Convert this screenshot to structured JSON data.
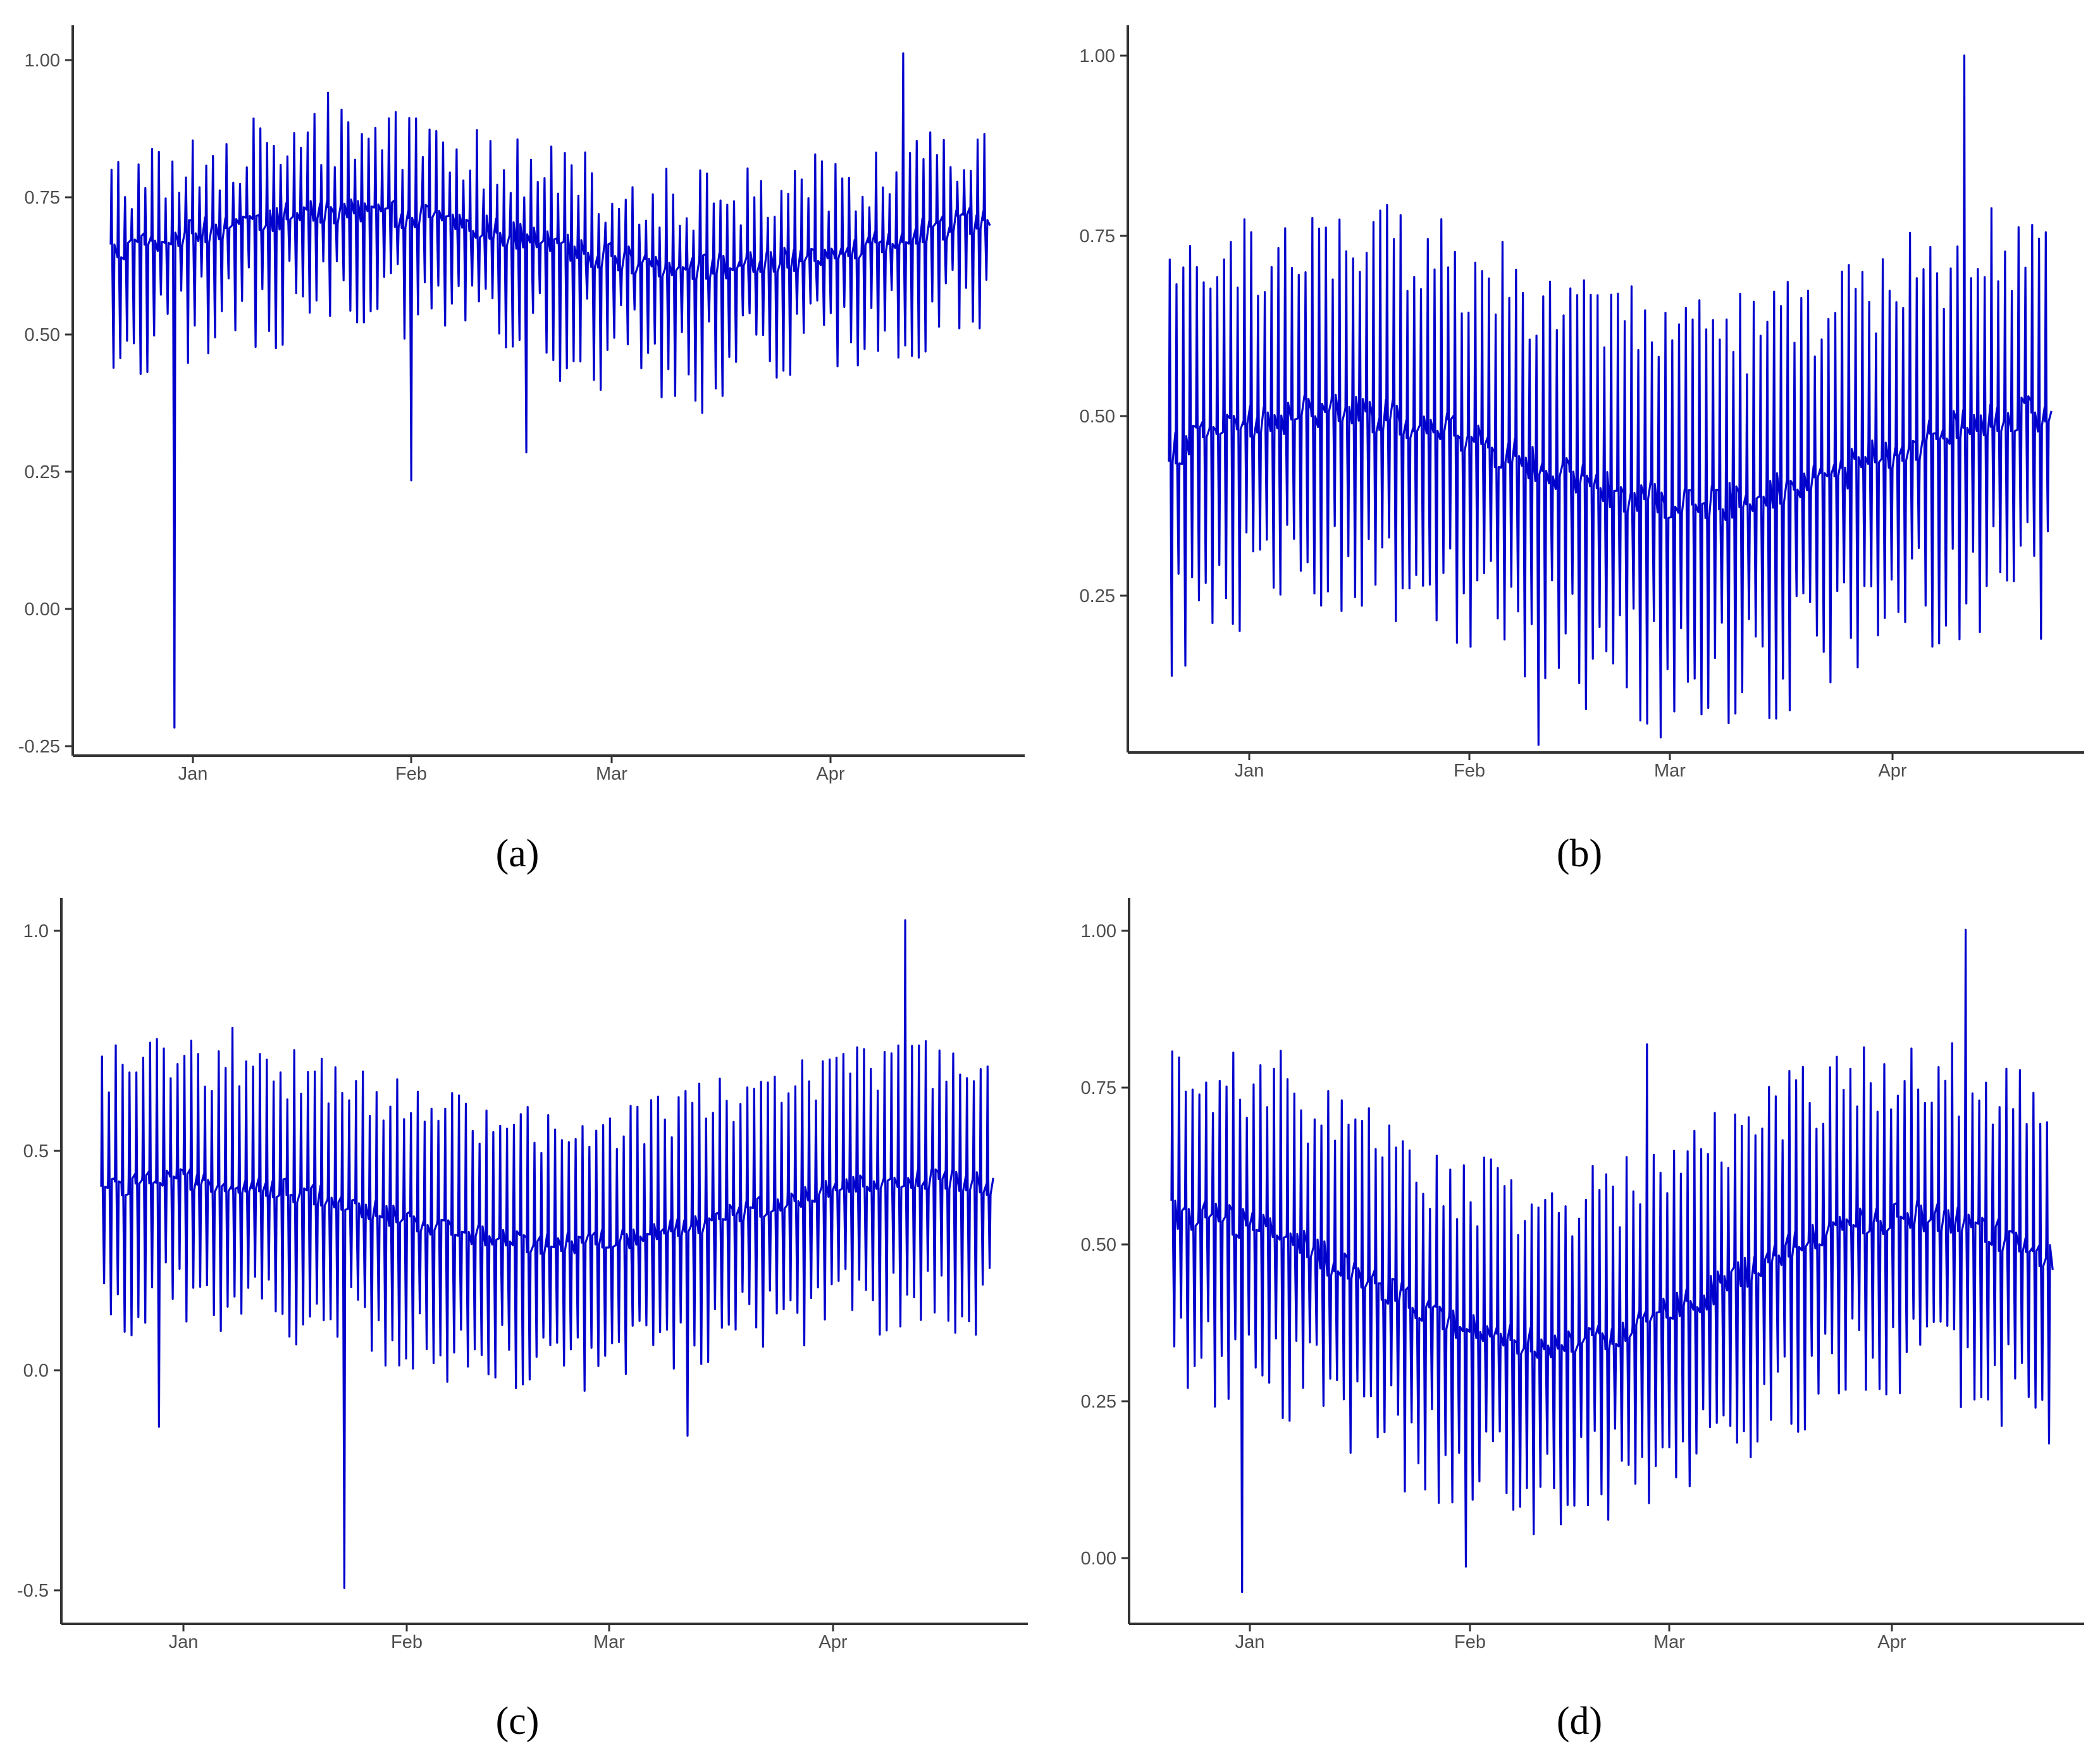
{
  "chart_data": [
    {
      "id": "a",
      "type": "line",
      "caption": "(a)",
      "x_ticks": [
        "Jan",
        "Feb",
        "Mar",
        "Apr"
      ],
      "y_ticks": [
        "1.00",
        "0.75",
        "0.50",
        "0.25",
        "0.00",
        "-0.25"
      ],
      "ylim": [
        -0.26,
        1.04
      ],
      "xlim_days": [
        -26,
        128
      ],
      "date_start": "2019-12-20",
      "title": "",
      "xlabel": "",
      "ylabel": "",
      "pattern": {
        "high": 0.78,
        "low": 0.5,
        "center": 0.66,
        "amp": 0.05
      },
      "spikes": [
        {
          "day": 1,
          "value": -0.21
        },
        {
          "day": 109,
          "value": 0.99
        },
        {
          "day": 36,
          "value": 0.23
        },
        {
          "day": 53,
          "value": 0.28
        },
        {
          "day": 79,
          "value": 0.35
        },
        {
          "day": 24,
          "value": 0.92
        }
      ],
      "color": "#0000CD"
    },
    {
      "id": "b",
      "type": "line",
      "caption": "(b)",
      "x_ticks": [
        "Jan",
        "Feb",
        "Mar",
        "Apr"
      ],
      "y_ticks": [
        "1.00",
        "0.75",
        "0.50",
        "0.25"
      ],
      "ylim": [
        0.07,
        1.03
      ],
      "xlim_days": [
        -26,
        128
      ],
      "date_start": "2019-12-20",
      "title": "",
      "xlabel": "",
      "ylabel": "",
      "pattern": {
        "high": 0.68,
        "low": 0.24,
        "center": 0.46,
        "amp": 0.06
      },
      "spikes": [
        {
          "day": 109,
          "value": 0.99
        },
        {
          "day": 46,
          "value": 0.08
        },
        {
          "day": 64,
          "value": 0.09
        }
      ],
      "color": "#0000CD"
    },
    {
      "id": "c",
      "type": "line",
      "caption": "(c)",
      "x_ticks": [
        "Jan",
        "Feb",
        "Mar",
        "Apr"
      ],
      "y_ticks": [
        "1.0",
        "0.5",
        "0.0",
        "-0.5"
      ],
      "ylim": [
        -0.58,
        1.04
      ],
      "xlim_days": [
        -26,
        128
      ],
      "date_start": "2019-12-20",
      "title": "",
      "xlabel": "",
      "ylabel": "",
      "pattern": {
        "high": 0.6,
        "low": 0.08,
        "center": 0.34,
        "amp": 0.07
      },
      "spikes": [
        {
          "day": 27,
          "value": -0.5
        },
        {
          "day": 109,
          "value": 0.99
        },
        {
          "day": 77,
          "value": -0.16
        },
        {
          "day": 0,
          "value": -0.14
        },
        {
          "day": 11,
          "value": 0.75
        }
      ],
      "color": "#0000CD"
    },
    {
      "id": "d",
      "type": "line",
      "caption": "(d)",
      "x_ticks": [
        "Jan",
        "Feb",
        "Mar",
        "Apr"
      ],
      "y_ticks": [
        "1.00",
        "0.75",
        "0.50",
        "0.25",
        "0.00"
      ],
      "ylim": [
        -0.1,
        1.04
      ],
      "xlim_days": [
        -26,
        128
      ],
      "date_start": "2019-12-20",
      "title": "",
      "xlabel": "",
      "ylabel": "",
      "pattern": {
        "high": 0.66,
        "low": 0.22,
        "center": 0.44,
        "amp": 0.1
      },
      "spikes": [
        {
          "day": 2,
          "value": -0.05
        },
        {
          "day": 109,
          "value": 0.99
        },
        {
          "day": 62,
          "value": 0.81
        },
        {
          "day": 8,
          "value": 0.8
        },
        {
          "day": 35,
          "value": -0.01
        }
      ],
      "color": "#0000CD"
    }
  ]
}
